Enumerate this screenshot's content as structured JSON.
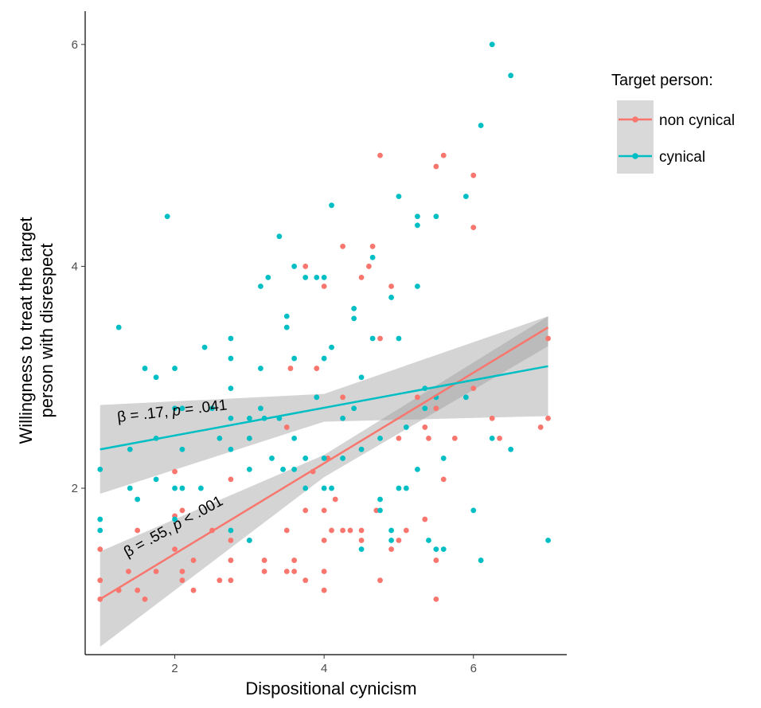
{
  "chart_data": {
    "type": "scatter",
    "xlabel": "Dispositional cynicism",
    "ylabel_lines": [
      "Willingness to treat the target",
      "person with disrespect"
    ],
    "xlim": [
      0.8,
      7.25
    ],
    "ylim": [
      0.5,
      6.3
    ],
    "xticks": [
      2,
      4,
      6
    ],
    "yticks": [
      2,
      4,
      6
    ],
    "grid": false,
    "legend": {
      "title": "Target person:",
      "position": "right",
      "entries": [
        "non cynical",
        "cynical"
      ]
    },
    "colors": {
      "non_cynical": "#F8766D",
      "cynical": "#00BFC4",
      "band": "#999999"
    },
    "annotations": {
      "cynical": {
        "beta": "β = .17, ",
        "p": "p",
        "rest": " = .041"
      },
      "non_cynical": {
        "beta": "β = .55, ",
        "p": "p",
        "rest": " < .001"
      }
    },
    "series": [
      {
        "name": "non cynical",
        "fit": {
          "x": [
            1.0,
            7.0
          ],
          "y": [
            1.0,
            3.45
          ]
        },
        "ci": {
          "x": [
            1.0,
            4.0,
            7.0
          ],
          "upper": [
            1.43,
            2.3,
            3.55
          ],
          "lower": [
            0.57,
            2.1,
            3.28
          ]
        },
        "points": [
          [
            1.0,
            1.0
          ],
          [
            1.0,
            1.17
          ],
          [
            1.0,
            1.45
          ],
          [
            1.25,
            1.08
          ],
          [
            1.38,
            1.25
          ],
          [
            1.5,
            1.62
          ],
          [
            1.5,
            1.08
          ],
          [
            1.6,
            1.0
          ],
          [
            1.75,
            1.25
          ],
          [
            2.0,
            1.45
          ],
          [
            2.0,
            1.75
          ],
          [
            2.0,
            2.15
          ],
          [
            2.1,
            1.8
          ],
          [
            2.1,
            1.25
          ],
          [
            2.1,
            1.17
          ],
          [
            2.25,
            1.08
          ],
          [
            2.25,
            1.35
          ],
          [
            2.5,
            1.62
          ],
          [
            2.6,
            1.17
          ],
          [
            2.75,
            1.17
          ],
          [
            2.75,
            1.35
          ],
          [
            2.75,
            2.08
          ],
          [
            2.75,
            1.53
          ],
          [
            3.0,
            1.53
          ],
          [
            3.0,
            2.45
          ],
          [
            3.2,
            1.35
          ],
          [
            3.2,
            1.25
          ],
          [
            3.5,
            1.62
          ],
          [
            3.5,
            1.25
          ],
          [
            3.5,
            2.55
          ],
          [
            3.55,
            3.08
          ],
          [
            3.6,
            1.35
          ],
          [
            3.6,
            1.25
          ],
          [
            3.75,
            1.17
          ],
          [
            3.75,
            4.0
          ],
          [
            3.75,
            1.8
          ],
          [
            3.85,
            2.15
          ],
          [
            3.9,
            3.08
          ],
          [
            4.0,
            1.25
          ],
          [
            4.0,
            1.08
          ],
          [
            4.0,
            1.53
          ],
          [
            4.0,
            1.8
          ],
          [
            4.0,
            3.82
          ],
          [
            4.05,
            2.27
          ],
          [
            4.1,
            1.62
          ],
          [
            4.15,
            1.9
          ],
          [
            4.25,
            1.62
          ],
          [
            4.25,
            2.82
          ],
          [
            4.25,
            4.18
          ],
          [
            4.35,
            1.62
          ],
          [
            4.5,
            1.53
          ],
          [
            4.5,
            1.62
          ],
          [
            4.5,
            2.35
          ],
          [
            4.5,
            3.9
          ],
          [
            4.6,
            4.0
          ],
          [
            4.65,
            4.18
          ],
          [
            4.7,
            1.8
          ],
          [
            4.75,
            1.17
          ],
          [
            4.75,
            3.35
          ],
          [
            4.75,
            5.0
          ],
          [
            4.9,
            1.45
          ],
          [
            4.9,
            3.82
          ],
          [
            5.0,
            1.53
          ],
          [
            5.0,
            2.45
          ],
          [
            5.1,
            1.62
          ],
          [
            5.25,
            2.82
          ],
          [
            5.35,
            1.72
          ],
          [
            5.35,
            2.55
          ],
          [
            5.4,
            2.45
          ],
          [
            5.5,
            1.0
          ],
          [
            5.5,
            1.35
          ],
          [
            5.5,
            2.72
          ],
          [
            5.5,
            4.9
          ],
          [
            5.6,
            2.08
          ],
          [
            5.6,
            5.0
          ],
          [
            5.75,
            2.45
          ],
          [
            6.0,
            2.9
          ],
          [
            6.0,
            4.35
          ],
          [
            6.0,
            4.82
          ],
          [
            6.25,
            2.63
          ],
          [
            6.35,
            2.45
          ],
          [
            6.9,
            2.55
          ],
          [
            7.0,
            2.63
          ],
          [
            7.0,
            3.35
          ]
        ]
      },
      {
        "name": "cynical",
        "fit": {
          "x": [
            1.0,
            7.0
          ],
          "y": [
            2.35,
            3.1
          ]
        },
        "ci": {
          "x": [
            1.0,
            4.0,
            7.0
          ],
          "upper": [
            2.75,
            2.85,
            3.55
          ],
          "lower": [
            1.95,
            2.6,
            2.65
          ]
        },
        "points": [
          [
            1.0,
            2.17
          ],
          [
            1.0,
            1.72
          ],
          [
            1.0,
            1.62
          ],
          [
            1.25,
            3.45
          ],
          [
            1.4,
            2.0
          ],
          [
            1.4,
            2.35
          ],
          [
            1.5,
            1.9
          ],
          [
            1.6,
            3.08
          ],
          [
            1.75,
            3.0
          ],
          [
            1.75,
            2.08
          ],
          [
            1.75,
            2.45
          ],
          [
            1.9,
            4.45
          ],
          [
            2.0,
            3.08
          ],
          [
            2.0,
            2.72
          ],
          [
            2.0,
            2.0
          ],
          [
            2.0,
            1.72
          ],
          [
            2.1,
            2.0
          ],
          [
            2.1,
            2.72
          ],
          [
            2.1,
            2.35
          ],
          [
            2.35,
            2.0
          ],
          [
            2.4,
            3.27
          ],
          [
            2.5,
            2.72
          ],
          [
            2.6,
            2.45
          ],
          [
            2.75,
            3.35
          ],
          [
            2.75,
            3.17
          ],
          [
            2.75,
            2.9
          ],
          [
            2.75,
            2.63
          ],
          [
            2.75,
            2.35
          ],
          [
            2.75,
            1.62
          ],
          [
            3.0,
            2.63
          ],
          [
            3.0,
            2.45
          ],
          [
            3.0,
            2.17
          ],
          [
            3.0,
            1.53
          ],
          [
            3.15,
            3.82
          ],
          [
            3.15,
            3.08
          ],
          [
            3.15,
            2.72
          ],
          [
            3.2,
            2.63
          ],
          [
            3.25,
            3.9
          ],
          [
            3.3,
            2.27
          ],
          [
            3.4,
            4.27
          ],
          [
            3.4,
            2.63
          ],
          [
            3.45,
            2.17
          ],
          [
            3.5,
            3.55
          ],
          [
            3.5,
            3.45
          ],
          [
            3.6,
            4.0
          ],
          [
            3.6,
            3.17
          ],
          [
            3.6,
            2.45
          ],
          [
            3.6,
            2.17
          ],
          [
            3.75,
            3.9
          ],
          [
            3.75,
            2.27
          ],
          [
            3.75,
            2.0
          ],
          [
            3.9,
            3.9
          ],
          [
            3.9,
            2.82
          ],
          [
            4.0,
            3.9
          ],
          [
            4.0,
            3.17
          ],
          [
            4.0,
            2.27
          ],
          [
            4.0,
            2.0
          ],
          [
            4.1,
            4.55
          ],
          [
            4.1,
            3.27
          ],
          [
            4.1,
            2.0
          ],
          [
            4.25,
            2.63
          ],
          [
            4.25,
            2.27
          ],
          [
            4.4,
            3.62
          ],
          [
            4.4,
            3.53
          ],
          [
            4.4,
            2.72
          ],
          [
            4.5,
            3.0
          ],
          [
            4.5,
            2.35
          ],
          [
            4.5,
            1.45
          ],
          [
            4.65,
            4.08
          ],
          [
            4.65,
            3.35
          ],
          [
            4.75,
            2.45
          ],
          [
            4.75,
            1.9
          ],
          [
            4.75,
            1.8
          ],
          [
            4.9,
            3.72
          ],
          [
            4.9,
            1.62
          ],
          [
            4.9,
            1.53
          ],
          [
            5.0,
            4.63
          ],
          [
            5.0,
            3.35
          ],
          [
            5.0,
            2.0
          ],
          [
            5.1,
            2.0
          ],
          [
            5.1,
            2.55
          ],
          [
            5.25,
            4.45
          ],
          [
            5.25,
            4.37
          ],
          [
            5.25,
            3.82
          ],
          [
            5.25,
            2.17
          ],
          [
            5.35,
            2.9
          ],
          [
            5.35,
            2.72
          ],
          [
            5.4,
            1.53
          ],
          [
            5.5,
            4.45
          ],
          [
            5.5,
            2.82
          ],
          [
            5.5,
            1.45
          ],
          [
            5.6,
            2.27
          ],
          [
            5.6,
            1.45
          ],
          [
            5.9,
            4.63
          ],
          [
            5.9,
            2.82
          ],
          [
            6.0,
            1.8
          ],
          [
            6.1,
            5.27
          ],
          [
            6.1,
            1.35
          ],
          [
            6.25,
            6.0
          ],
          [
            6.25,
            2.45
          ],
          [
            6.5,
            5.72
          ],
          [
            6.5,
            2.35
          ],
          [
            7.0,
            1.53
          ]
        ]
      }
    ]
  }
}
